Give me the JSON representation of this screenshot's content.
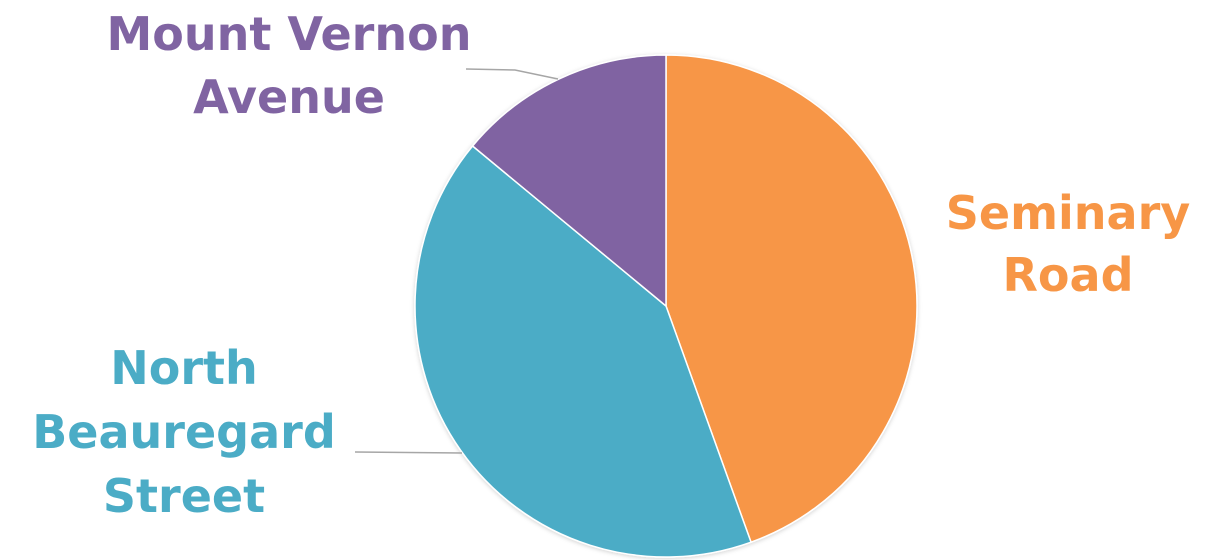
{
  "chart_data": {
    "type": "pie",
    "title": "",
    "start": "top (12 o'clock), clockwise",
    "legend": "none (slices labeled directly)",
    "slices": [
      {
        "key": "seminary",
        "label": "Seminary Road",
        "label_lines": [
          "Seminary",
          "Road"
        ],
        "value": 44.5,
        "color": "#F79646"
      },
      {
        "key": "beauregard",
        "label": "North Beauregard Street",
        "label_lines": [
          "North",
          "Beauregard",
          "Street"
        ],
        "value": 41.5,
        "color": "#4BACC6"
      },
      {
        "key": "mountvernon",
        "label": "Mount Vernon Avenue",
        "label_lines": [
          "Mount Vernon",
          "Avenue"
        ],
        "value": 14.0,
        "color": "#8064A2"
      }
    ]
  }
}
